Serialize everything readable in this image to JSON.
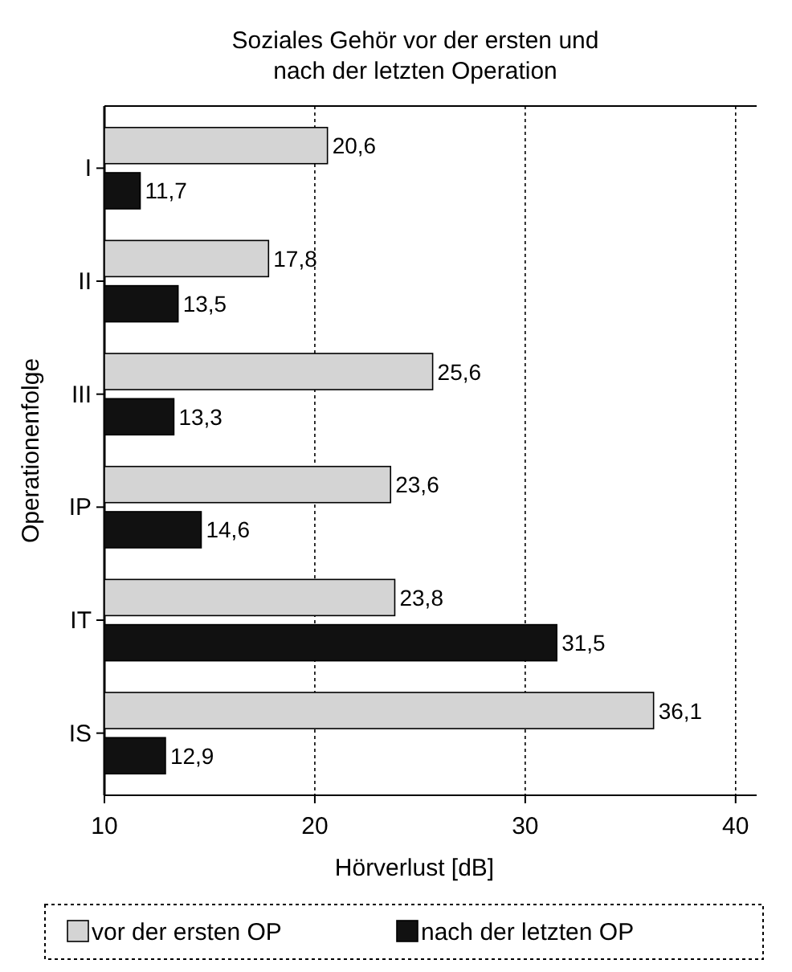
{
  "chart_data": {
    "type": "bar",
    "orientation": "horizontal",
    "title": "Soziales Gehör vor der ersten und nach der letzten Operation",
    "xlabel": "Hörverlust [dB]",
    "ylabel": "Operationenfolge",
    "categories": [
      "I",
      "II",
      "III",
      "IP",
      "IT",
      "IS"
    ],
    "series": [
      {
        "name": "vor der ersten OP",
        "color": "#d4d4d4",
        "values": [
          20.6,
          17.8,
          25.6,
          23.6,
          23.8,
          36.1
        ],
        "value_labels": [
          "20,6",
          "17,8",
          "25,6",
          "23,6",
          "23,8",
          "36,1"
        ]
      },
      {
        "name": "nach der letzten OP",
        "color": "#111111",
        "values": [
          11.7,
          13.5,
          13.3,
          14.6,
          31.5,
          12.9
        ],
        "value_labels": [
          "11,7",
          "13,5",
          "13,3",
          "14,6",
          "31,5",
          "12,9"
        ]
      }
    ],
    "xlim": [
      10,
      41
    ],
    "xticks": [
      10,
      20,
      30,
      40
    ],
    "grid": "x",
    "legend": "bottom"
  }
}
